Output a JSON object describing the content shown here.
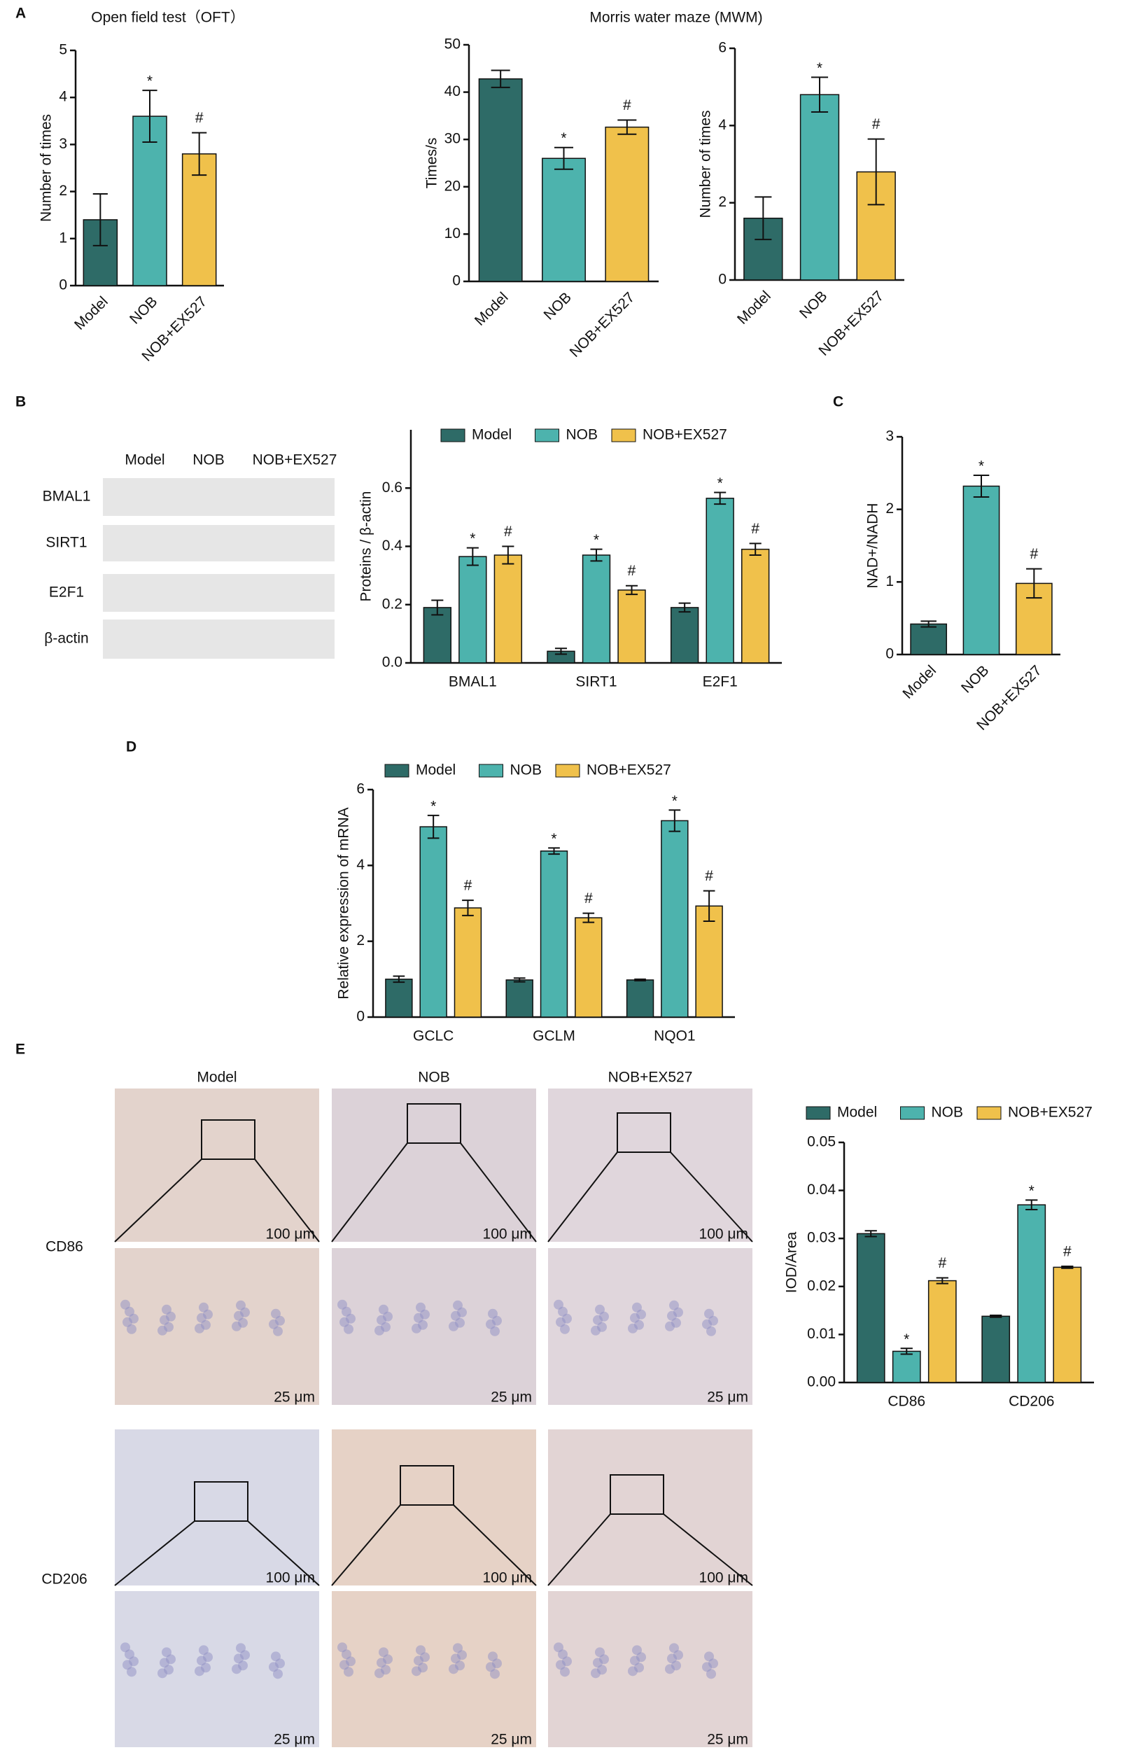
{
  "panel_labels": [
    "A",
    "B",
    "C",
    "D",
    "E"
  ],
  "blot": {
    "lanes": [
      "Model",
      "NOB",
      "NOB+EX527"
    ],
    "rows": [
      "BMAL1",
      "SIRT1",
      "E2F1",
      "β-actin"
    ]
  },
  "histology": {
    "columns": [
      "Model",
      "NOB",
      "NOB+EX527"
    ],
    "rows": [
      "CD86",
      "CD206"
    ],
    "scale_bars": [
      "100 μm",
      "25 μm"
    ]
  },
  "chart_data": [
    {
      "type": "bar",
      "title": "Open field test（OFT）",
      "ylabel": "Number of times",
      "categories": [
        "Model",
        "NOB",
        "NOB+EX527"
      ],
      "values": [
        1.4,
        3.6,
        2.8
      ],
      "errors": [
        0.55,
        0.55,
        0.45
      ],
      "colors": [
        "#2e6b67",
        "#4db3ad",
        "#f0c14b"
      ],
      "annotations": [
        null,
        "*",
        "#"
      ],
      "ylim": [
        0,
        5
      ],
      "yticks": [
        0,
        1,
        2,
        3,
        4,
        5
      ]
    },
    {
      "type": "bar",
      "title": "Morris water maze (MWM)",
      "ylabel": "Times/s",
      "categories": [
        "Model",
        "NOB",
        "NOB+EX527"
      ],
      "values": [
        42.8,
        26,
        32.6
      ],
      "errors": [
        1.8,
        2.3,
        1.5
      ],
      "colors": [
        "#2e6b67",
        "#4db3ad",
        "#f0c14b"
      ],
      "annotations": [
        null,
        "*",
        "#"
      ],
      "ylim": [
        0,
        50
      ],
      "yticks": [
        0,
        10,
        20,
        30,
        40,
        50
      ]
    },
    {
      "type": "bar",
      "ylabel": "Number of times",
      "categories": [
        "Model",
        "NOB",
        "NOB+EX527"
      ],
      "values": [
        1.6,
        4.8,
        2.8
      ],
      "errors": [
        0.55,
        0.45,
        0.85
      ],
      "colors": [
        "#2e6b67",
        "#4db3ad",
        "#f0c14b"
      ],
      "annotations": [
        null,
        "*",
        "#"
      ],
      "ylim": [
        0,
        6
      ],
      "yticks": [
        0,
        2,
        4,
        6
      ]
    },
    {
      "type": "grouped-bar",
      "ylabel": "Proteins / β-actin",
      "legend": "top",
      "categories": [
        "BMAL1",
        "SIRT1",
        "E2F1"
      ],
      "series": [
        {
          "name": "Model",
          "color": "#2e6b67",
          "values": [
            0.19,
            0.04,
            0.19
          ],
          "errors": [
            0.025,
            0.01,
            0.015
          ]
        },
        {
          "name": "NOB",
          "color": "#4db3ad",
          "values": [
            0.365,
            0.37,
            0.565
          ],
          "errors": [
            0.03,
            0.02,
            0.02
          ],
          "annotations": [
            "*",
            "*",
            "*"
          ]
        },
        {
          "name": "NOB+EX527",
          "color": "#f0c14b",
          "values": [
            0.37,
            0.25,
            0.39
          ],
          "errors": [
            0.03,
            0.015,
            0.02
          ],
          "annotations": [
            "#",
            "#",
            "#"
          ]
        }
      ],
      "ylim": [
        0,
        0.8
      ],
      "yticks": [
        {
          "value": 0,
          "label": "0.0"
        },
        0.2,
        0.4,
        0.6
      ]
    },
    {
      "type": "bar",
      "ylabel": "NAD+/NADH",
      "categories": [
        "Model",
        "NOB",
        "NOB+EX527"
      ],
      "values": [
        0.42,
        2.32,
        0.98
      ],
      "errors": [
        0.04,
        0.15,
        0.2
      ],
      "colors": [
        "#2e6b67",
        "#4db3ad",
        "#f0c14b"
      ],
      "annotations": [
        null,
        "*",
        "#"
      ],
      "ylim": [
        0,
        3
      ],
      "yticks": [
        0,
        1,
        2,
        3
      ]
    },
    {
      "type": "grouped-bar",
      "ylabel": "Relative expression of mRNA",
      "legend": "top",
      "categories": [
        "GCLC",
        "GCLM",
        "NQO1"
      ],
      "series": [
        {
          "name": "Model",
          "color": "#2e6b67",
          "values": [
            1.0,
            0.98,
            0.98
          ],
          "errors": [
            0.08,
            0.05,
            0.02
          ]
        },
        {
          "name": "NOB",
          "color": "#4db3ad",
          "values": [
            5.02,
            4.38,
            5.18
          ],
          "errors": [
            0.3,
            0.08,
            0.28
          ],
          "annotations": [
            "*",
            "*",
            "*"
          ]
        },
        {
          "name": "NOB+EX527",
          "color": "#f0c14b",
          "values": [
            2.88,
            2.62,
            2.93
          ],
          "errors": [
            0.2,
            0.12,
            0.4
          ],
          "annotations": [
            "#",
            "#",
            "#"
          ]
        }
      ],
      "ylim": [
        0,
        6
      ],
      "yticks": [
        0,
        2,
        4,
        6
      ]
    },
    {
      "type": "grouped-bar",
      "ylabel": "IOD/Area",
      "legend": "top",
      "categories": [
        "CD86",
        "CD206"
      ],
      "series": [
        {
          "name": "Model",
          "color": "#2e6b67",
          "values": [
            0.031,
            0.0138
          ],
          "errors": [
            0.0006,
            0.0002
          ]
        },
        {
          "name": "NOB",
          "color": "#4db3ad",
          "values": [
            0.0065,
            0.037
          ],
          "errors": [
            0.0006,
            0.001
          ],
          "annotations": [
            "*",
            "*"
          ]
        },
        {
          "name": "NOB+EX527",
          "color": "#f0c14b",
          "values": [
            0.0212,
            0.024
          ],
          "errors": [
            0.0006,
            0.0002
          ],
          "annotations": [
            "#",
            "#"
          ]
        }
      ],
      "ylim": [
        0,
        0.05
      ],
      "yticks": [
        {
          "value": 0,
          "label": "0.00"
        },
        0.01,
        0.02,
        0.03,
        0.04,
        0.05
      ]
    }
  ]
}
